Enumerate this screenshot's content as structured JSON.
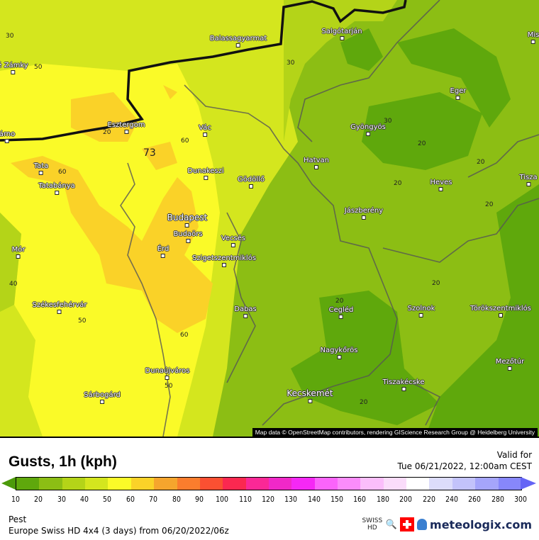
{
  "map": {
    "attribution": "Map data © OpenStreetMap contributors, rendering GIScience Research Group @ Heidelberg University",
    "cities": [
      "Balassagyarmat",
      "Salgótarján",
      "Mis",
      "é Zámky",
      "Eger",
      "Esztergom",
      "Vác",
      "Gyöngyös",
      "árno",
      "Tata",
      "Tatabánya",
      "Dunakeszi",
      "Gödöllő",
      "Hatvan",
      "Heves",
      "Tisza",
      "Jászberény",
      "Budapest",
      "Budaörs",
      "Vecsés",
      "Érd",
      "Szigetszentmiklós",
      "Mór",
      "Székesfehérvár",
      "Dabas",
      "Cegléd",
      "Szolnok",
      "Törökszentmiklós",
      "Nagykőrös",
      "Mezőtúr",
      "Dunaújváros",
      "Tiszakécske",
      "Kecskemét",
      "Sárbogárd"
    ],
    "contour_labels": [
      "30",
      "50",
      "30",
      "30",
      "60",
      "73",
      "20",
      "20",
      "20",
      "20",
      "60",
      "40",
      "50",
      "20",
      "20",
      "60",
      "50",
      "20",
      "20"
    ]
  },
  "legend": {
    "title": "Gusts, 1h (kph)",
    "valid_label": "Valid for",
    "valid_time": "Tue 06/21/2022, 12:00am CEST",
    "ticks": [
      "10",
      "20",
      "30",
      "40",
      "50",
      "60",
      "70",
      "80",
      "90",
      "100",
      "110",
      "120",
      "130",
      "140",
      "150",
      "160",
      "180",
      "200",
      "220",
      "240",
      "260",
      "280",
      "300"
    ],
    "colors": [
      "#5fa80c",
      "#8cbe14",
      "#b4d418",
      "#d4e61e",
      "#fafa28",
      "#fad228",
      "#f5a52d",
      "#fa7d2d",
      "#fa5032",
      "#fa2850",
      "#fa2896",
      "#f028c8",
      "#f528f5",
      "#fa64fa",
      "#fa8cfa",
      "#fabefa",
      "#fadcfa",
      "#ffffff",
      "#dcdcfa",
      "#c3c3fa",
      "#a5a5fa",
      "#8787fa"
    ],
    "below_color": "#4c9a0a",
    "above_color": "#6464f5",
    "region": "Pest",
    "model": "Europe Swiss HD 4x4 (3 days) from  06/20/2022/06z",
    "swiss_hd": "SWISS HD",
    "brand": "meteologix.com"
  }
}
